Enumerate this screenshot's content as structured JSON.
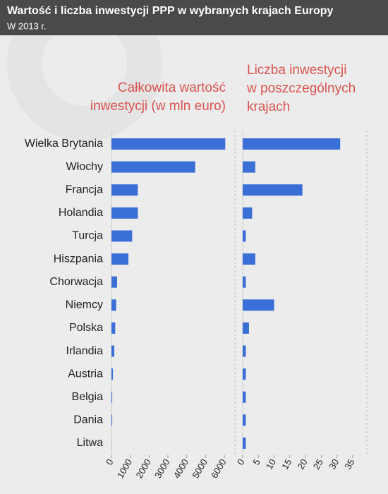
{
  "header": {
    "title": "Wartość i liczba inwestycji PPP w wybranych krajach Europy",
    "subtitle": "W 2013 r."
  },
  "chart_data": [
    {
      "type": "bar",
      "orientation": "horizontal",
      "title": [
        "Całkowita wartość",
        "inwestycji (w mln euro)"
      ],
      "categories": [
        "Wielka Brytania",
        "Włochy",
        "Francja",
        "Holandia",
        "Turcja",
        "Hiszpania",
        "Chorwacja",
        "Niemcy",
        "Polska",
        "Irlandia",
        "Austria",
        "Belgia",
        "Dania",
        "Litwa"
      ],
      "values": [
        6050,
        4450,
        1400,
        1400,
        1100,
        900,
        300,
        250,
        200,
        150,
        80,
        40,
        40,
        5
      ],
      "color": "#3a6fd8",
      "xlim": [
        0,
        6000
      ],
      "xticks": [
        0,
        1000,
        2000,
        3000,
        4000,
        5000,
        6000
      ]
    },
    {
      "type": "bar",
      "orientation": "horizontal",
      "title": [
        "Liczba inwestycji",
        "w poszczególnych",
        "krajach"
      ],
      "values": [
        31,
        4,
        19,
        3,
        1,
        4,
        1,
        10,
        2,
        1,
        1,
        1,
        1,
        1
      ],
      "color": "#3a6fd8",
      "xlim": [
        0,
        35
      ],
      "xticks": [
        0,
        5,
        10,
        15,
        20,
        25,
        30,
        35
      ]
    }
  ]
}
